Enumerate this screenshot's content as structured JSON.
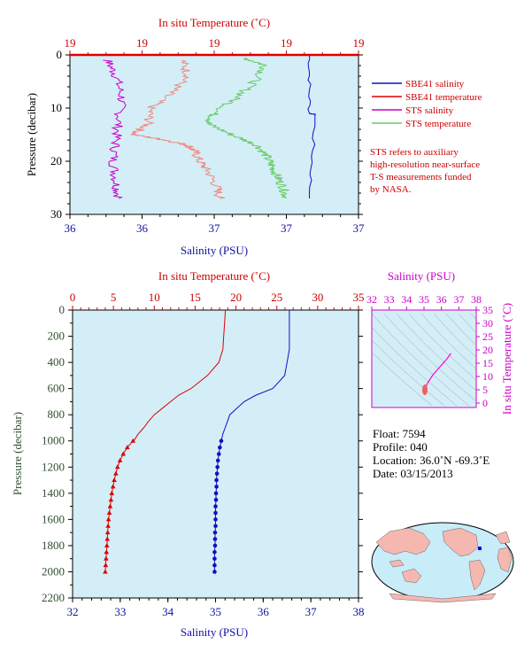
{
  "chart_data": [
    {
      "type": "line",
      "title": "In situ Temperature (˚C)",
      "xlabel": "Salinity (PSU)",
      "ylabel": "Pressure (decibar)",
      "top_ticks": [
        "19",
        "19",
        "19",
        "19",
        "19"
      ],
      "bottom_ticks": [
        "36",
        "36",
        "37",
        "37",
        "37"
      ],
      "y_ticks": [
        "0",
        "10",
        "20",
        "30"
      ],
      "ylim": [
        0,
        30
      ],
      "legend_position": "right",
      "legend": [
        {
          "name": "SBE41 salinity",
          "color": "#1010c0"
        },
        {
          "name": "SBE41 temperature",
          "color": "#dd0000"
        },
        {
          "name": "STS salinity",
          "color": "#cc00cc"
        },
        {
          "name": "STS temperature",
          "color": "#66cc66"
        }
      ],
      "note": [
        "STS refers to auxiliary",
        "high-resolution near-surface",
        "T-S measurements funded",
        "by NASA."
      ],
      "series": [
        {
          "name": "SBE41 salinity",
          "pressure": [
            0,
            11,
            11.2,
            27
          ],
          "x": [
            0.83,
            0.83,
            0.85,
            0.83
          ]
        },
        {
          "name": "SBE41 temperature",
          "pressure": [
            0,
            0
          ],
          "x": [
            0,
            1
          ]
        },
        {
          "name": "STS salinity",
          "pressure": [
            1,
            4,
            8,
            12,
            16,
            20,
            24,
            27
          ],
          "x": [
            0.13,
            0.16,
            0.18,
            0.17,
            0.16,
            0.15,
            0.16,
            0.17
          ]
        },
        {
          "name": "STS sal-temp trace",
          "pressure": [
            1,
            4,
            7,
            10,
            13,
            15,
            16,
            17,
            18,
            20,
            22,
            25,
            27
          ],
          "x": [
            0.39,
            0.41,
            0.35,
            0.28,
            0.27,
            0.22,
            0.33,
            0.41,
            0.43,
            0.45,
            0.48,
            0.51,
            0.52
          ]
        },
        {
          "name": "STS temperature",
          "pressure": [
            0.5,
            2,
            5,
            8,
            11,
            13,
            15,
            17,
            19,
            21,
            23,
            25,
            27
          ],
          "x": [
            0.6,
            0.68,
            0.64,
            0.58,
            0.5,
            0.48,
            0.56,
            0.65,
            0.68,
            0.7,
            0.72,
            0.74,
            0.75
          ]
        }
      ]
    },
    {
      "type": "line",
      "title": "In situ Temperature (˚C)",
      "xlabel": "Salinity (PSU)",
      "ylabel": "Pressure (decibar)",
      "xlim_temperature": [
        0,
        35
      ],
      "xlim_salinity": [
        32,
        38
      ],
      "ylim": [
        0,
        2200
      ],
      "top_ticks": [
        "0",
        "5",
        "10",
        "15",
        "20",
        "25",
        "30",
        "35"
      ],
      "bottom_ticks": [
        "32",
        "33",
        "34",
        "35",
        "36",
        "37",
        "38"
      ],
      "y_ticks": [
        "0",
        "200",
        "400",
        "600",
        "800",
        "1000",
        "1200",
        "1400",
        "1600",
        "1800",
        "2000",
        "2200"
      ],
      "series": [
        {
          "name": "temperature",
          "color": "#dd0000",
          "pressure": [
            0,
            100,
            200,
            300,
            400,
            500,
            600,
            650,
            700,
            750,
            800,
            850,
            900,
            950,
            1000
          ],
          "values": [
            18.7,
            18.6,
            18.5,
            18.4,
            17.9,
            16.5,
            14.5,
            13.0,
            12.0,
            11.0,
            10.0,
            9.3,
            8.7,
            8.0,
            7.5
          ]
        },
        {
          "name": "temperature points",
          "color": "#dd0000",
          "pressure": [
            1000,
            1050,
            1100,
            1150,
            1200,
            1250,
            1300,
            1350,
            1400,
            1450,
            1500,
            1550,
            1600,
            1650,
            1700,
            1750,
            1800,
            1850,
            1900,
            1950,
            2000
          ],
          "values": [
            7.4,
            6.7,
            6.2,
            5.8,
            5.5,
            5.3,
            5.1,
            4.95,
            4.8,
            4.7,
            4.6,
            4.5,
            4.4,
            4.35,
            4.3,
            4.25,
            4.2,
            4.15,
            4.1,
            4.05,
            4.0
          ]
        },
        {
          "name": "salinity",
          "color": "#1010c0",
          "pressure": [
            0,
            100,
            200,
            300,
            400,
            500,
            600,
            650,
            700,
            750,
            800,
            850,
            900,
            950,
            1000
          ],
          "values": [
            36.55,
            36.55,
            36.55,
            36.55,
            36.5,
            36.45,
            36.2,
            35.85,
            35.6,
            35.45,
            35.3,
            35.25,
            35.2,
            35.15,
            35.12
          ]
        },
        {
          "name": "salinity points",
          "color": "#1010c0",
          "pressure": [
            1000,
            1050,
            1100,
            1150,
            1200,
            1250,
            1300,
            1350,
            1400,
            1450,
            1500,
            1550,
            1600,
            1650,
            1700,
            1750,
            1800,
            1850,
            1900,
            1950,
            2000
          ],
          "values": [
            35.12,
            35.09,
            35.07,
            35.05,
            35.04,
            35.03,
            35.02,
            35.02,
            35.01,
            35.01,
            35.0,
            35.0,
            35.0,
            35.0,
            34.99,
            34.99,
            34.99,
            34.98,
            34.98,
            34.98,
            34.98
          ]
        }
      ]
    },
    {
      "type": "line",
      "title": "Salinity (PSU)",
      "ylabel": "In situ Temperature (˚C)",
      "xlim": [
        32,
        38
      ],
      "ylim": [
        0,
        35
      ],
      "top_ticks": [
        "32",
        "33",
        "34",
        "35",
        "36",
        "37",
        "38"
      ],
      "right_ticks": [
        "35",
        "30",
        "25",
        "20",
        "15",
        "10",
        "5",
        "0"
      ],
      "series": [
        {
          "name": "T-S",
          "color": "#ff00cc",
          "x": [
            35.0,
            35.05,
            35.2,
            35.5,
            35.9,
            36.3,
            36.55
          ],
          "y": [
            4.0,
            5.0,
            7.5,
            10.5,
            13.5,
            16.5,
            18.7
          ]
        }
      ]
    }
  ],
  "info": {
    "float": "Float:  7594",
    "profile": "Profile:  040",
    "location": "Location:  36.0˚N  -69.3˚E",
    "date": "Date:  03/15/2013"
  },
  "colors": {
    "plot_bg": "#d4eef8",
    "land": "#f4b8b0",
    "ocean": "#c8ecf8",
    "temperature": "#dd0000",
    "salinity": "#1010c0",
    "sts_salinity": "#cc00cc",
    "sts_temperature": "#66cc66",
    "sts_sal_temp_trace": "#f08a80",
    "axis_red": "#cc0000",
    "axis_blue": "#1010a0",
    "axis_magenta": "#cc00cc"
  }
}
